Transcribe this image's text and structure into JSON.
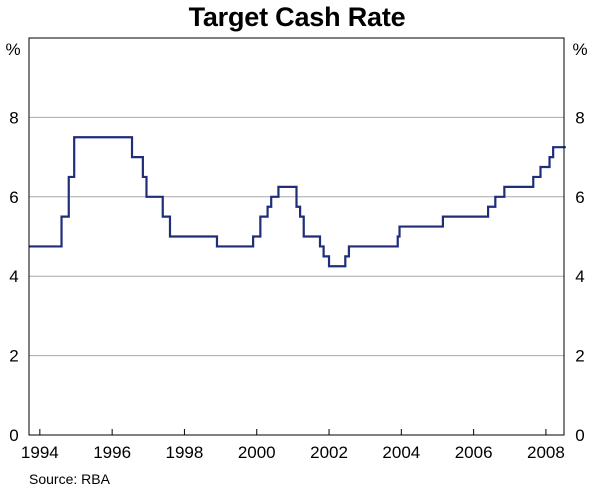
{
  "chart_data": {
    "type": "line",
    "title": "Target Cash Rate",
    "y_unit_left": "%",
    "y_unit_right": "%",
    "ylim": [
      0,
      10
    ],
    "yticks": [
      0,
      2,
      4,
      6,
      8
    ],
    "xlim": [
      1993.7,
      2008.5
    ],
    "xticks": [
      1994,
      1996,
      1998,
      2000,
      2002,
      2004,
      2006,
      2008
    ],
    "grid": true,
    "legend": "none",
    "colors": {
      "line": "#1f2d7b",
      "grid": "#a8a8a8",
      "axis": "#000000"
    },
    "series": [
      {
        "step": true,
        "points": [
          [
            1993.7,
            4.75
          ],
          [
            1994.6,
            5.5
          ],
          [
            1994.8,
            6.5
          ],
          [
            1994.95,
            7.5
          ],
          [
            1996.55,
            7.0
          ],
          [
            1996.85,
            6.5
          ],
          [
            1996.95,
            6.0
          ],
          [
            1997.4,
            5.5
          ],
          [
            1997.6,
            5.0
          ],
          [
            1998.9,
            4.75
          ],
          [
            1999.9,
            5.0
          ],
          [
            2000.1,
            5.5
          ],
          [
            2000.3,
            5.75
          ],
          [
            2000.4,
            6.0
          ],
          [
            2000.6,
            6.25
          ],
          [
            2001.1,
            5.75
          ],
          [
            2001.2,
            5.5
          ],
          [
            2001.3,
            5.0
          ],
          [
            2001.75,
            4.75
          ],
          [
            2001.85,
            4.5
          ],
          [
            2002.0,
            4.25
          ],
          [
            2002.45,
            4.5
          ],
          [
            2002.55,
            4.75
          ],
          [
            2003.9,
            5.0
          ],
          [
            2003.95,
            5.25
          ],
          [
            2005.15,
            5.5
          ],
          [
            2006.4,
            5.75
          ],
          [
            2006.6,
            6.0
          ],
          [
            2006.85,
            6.25
          ],
          [
            2007.65,
            6.5
          ],
          [
            2007.85,
            6.75
          ],
          [
            2008.1,
            7.0
          ],
          [
            2008.2,
            7.25
          ],
          [
            2008.55,
            7.25
          ]
        ]
      }
    ]
  },
  "source": "Source: RBA"
}
